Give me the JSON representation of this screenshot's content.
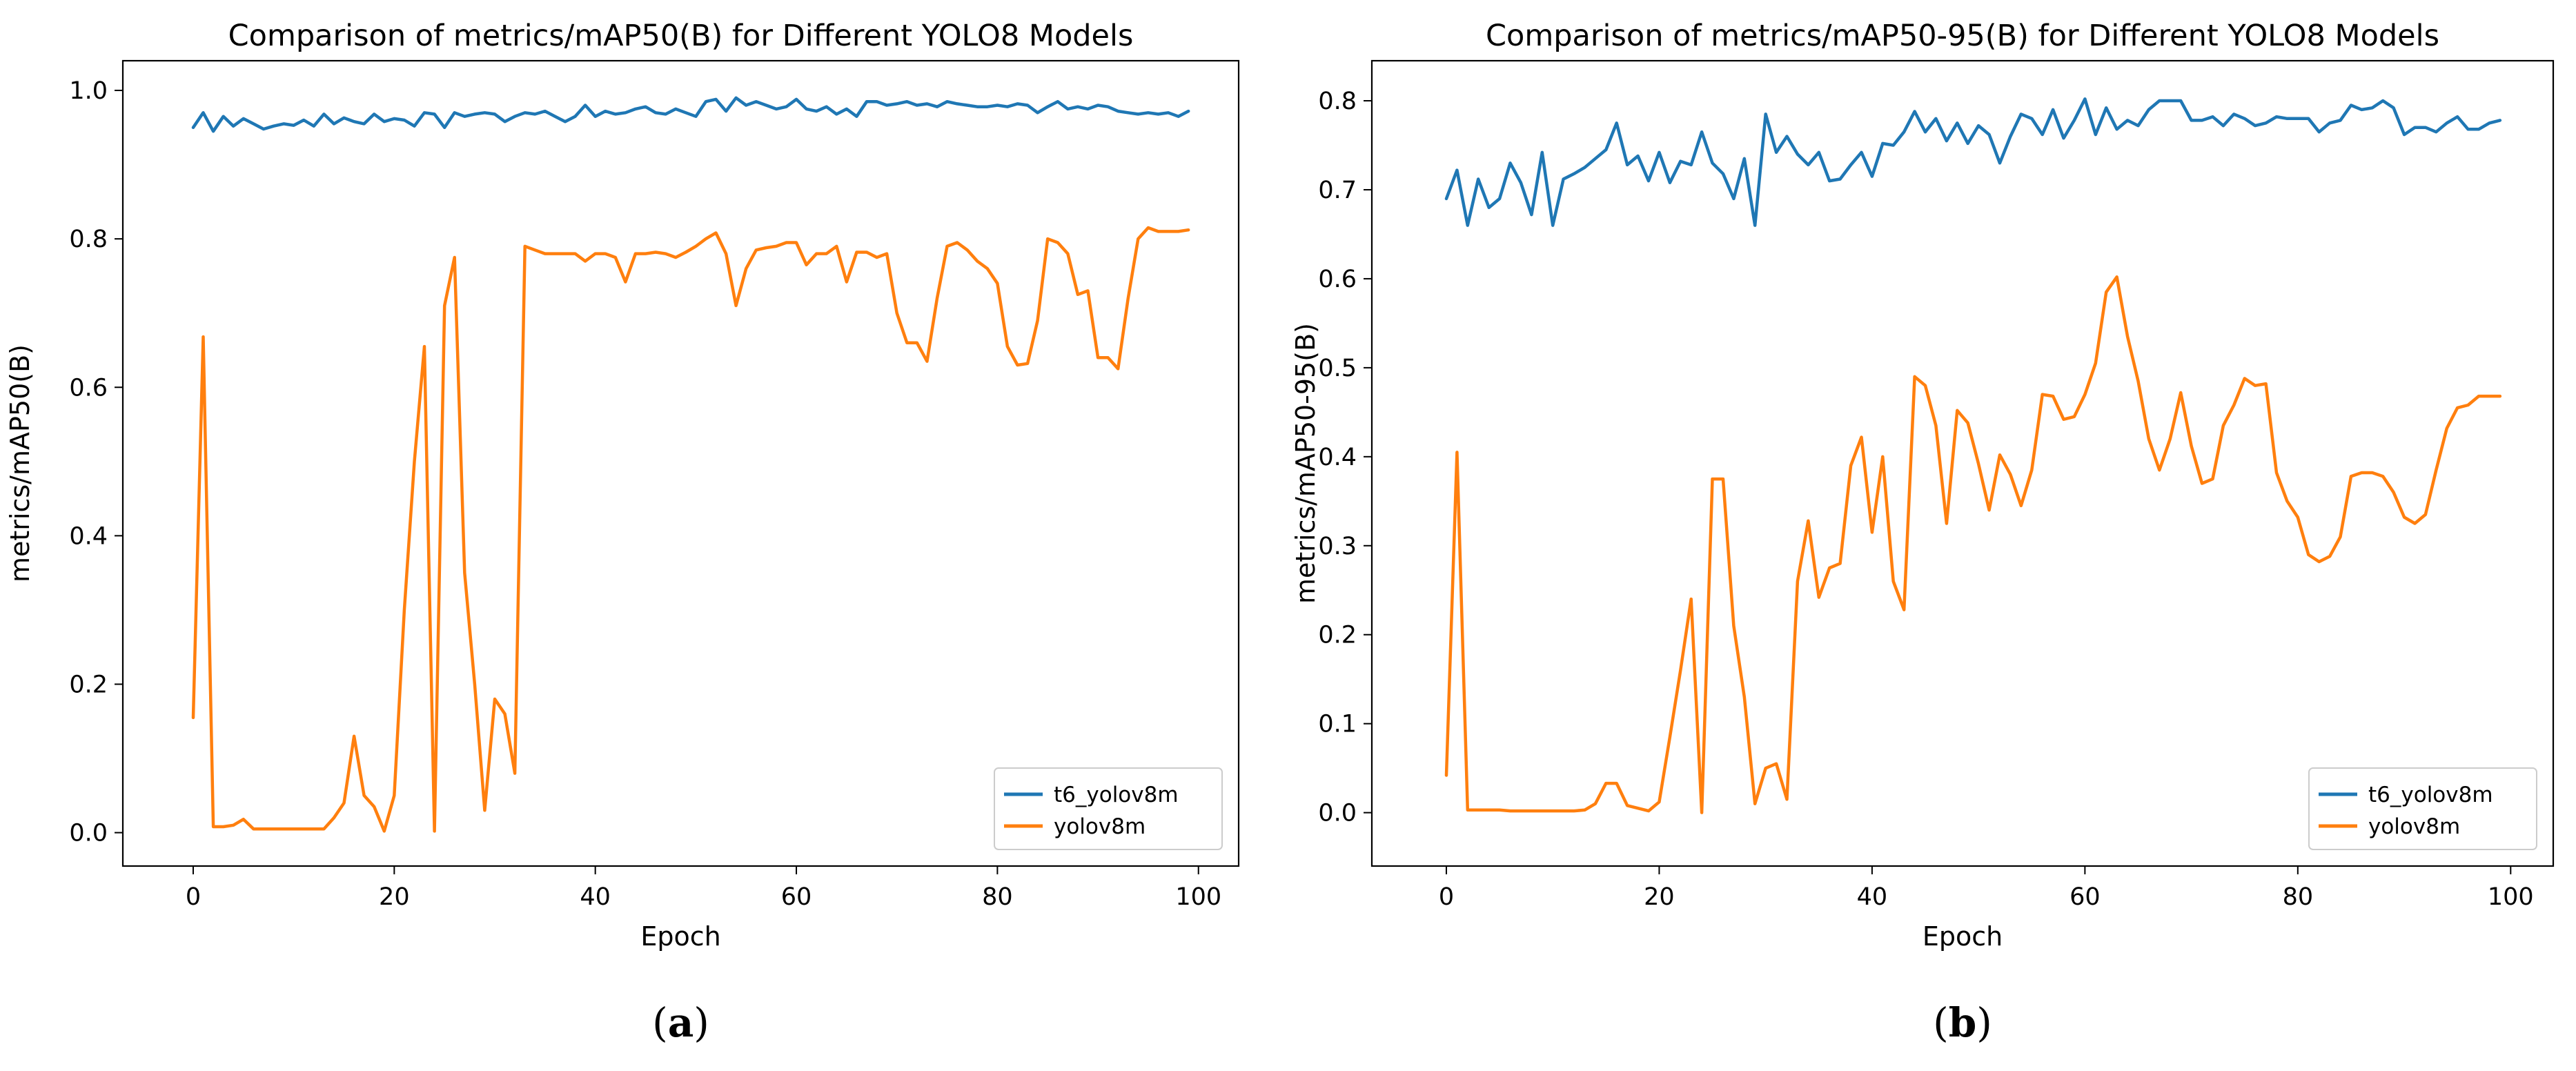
{
  "chart_data": [
    {
      "type": "line",
      "title": "Comparison of metrics/mAP50(B) for Different YOLO8 Models",
      "xlabel": "Epoch",
      "ylabel": "metrics/mAP50(B)",
      "xlim": [
        -7,
        104
      ],
      "ylim": [
        -0.045,
        1.04
      ],
      "xticks": [
        0,
        20,
        40,
        60,
        80,
        100
      ],
      "yticks": [
        0.0,
        0.2,
        0.4,
        0.6,
        0.8,
        1.0
      ],
      "legend_position": "lower-right",
      "caption_letter": "a",
      "series": [
        {
          "name": "t6_yolov8m",
          "color": "#1f77b4",
          "x": [
            0,
            1,
            2,
            3,
            4,
            5,
            6,
            7,
            8,
            9,
            10,
            11,
            12,
            13,
            14,
            15,
            16,
            17,
            18,
            19,
            20,
            21,
            22,
            23,
            24,
            25,
            26,
            27,
            28,
            29,
            30,
            31,
            32,
            33,
            34,
            35,
            36,
            37,
            38,
            39,
            40,
            41,
            42,
            43,
            44,
            45,
            46,
            47,
            48,
            49,
            50,
            51,
            52,
            53,
            54,
            55,
            56,
            57,
            58,
            59,
            60,
            61,
            62,
            63,
            64,
            65,
            66,
            67,
            68,
            69,
            70,
            71,
            72,
            73,
            74,
            75,
            76,
            77,
            78,
            79,
            80,
            81,
            82,
            83,
            84,
            85,
            86,
            87,
            88,
            89,
            90,
            91,
            92,
            93,
            94,
            95,
            96,
            97,
            98,
            99
          ],
          "values": [
            0.95,
            0.97,
            0.945,
            0.965,
            0.952,
            0.962,
            0.955,
            0.948,
            0.952,
            0.955,
            0.953,
            0.96,
            0.952,
            0.968,
            0.955,
            0.963,
            0.958,
            0.955,
            0.968,
            0.958,
            0.962,
            0.96,
            0.952,
            0.97,
            0.968,
            0.95,
            0.97,
            0.965,
            0.968,
            0.97,
            0.968,
            0.958,
            0.965,
            0.97,
            0.968,
            0.972,
            0.965,
            0.958,
            0.965,
            0.98,
            0.965,
            0.972,
            0.968,
            0.97,
            0.975,
            0.978,
            0.97,
            0.968,
            0.975,
            0.97,
            0.965,
            0.985,
            0.988,
            0.972,
            0.99,
            0.98,
            0.985,
            0.98,
            0.975,
            0.978,
            0.988,
            0.975,
            0.972,
            0.978,
            0.968,
            0.975,
            0.965,
            0.985,
            0.985,
            0.98,
            0.982,
            0.985,
            0.98,
            0.982,
            0.978,
            0.985,
            0.982,
            0.98,
            0.978,
            0.978,
            0.98,
            0.978,
            0.982,
            0.98,
            0.97,
            0.978,
            0.985,
            0.975,
            0.978,
            0.975,
            0.98,
            0.978,
            0.972,
            0.97,
            0.968,
            0.97,
            0.968,
            0.97,
            0.965,
            0.972
          ]
        },
        {
          "name": "yolov8m",
          "color": "#ff7f0e",
          "x": [
            0,
            1,
            2,
            3,
            4,
            5,
            6,
            7,
            8,
            9,
            10,
            11,
            12,
            13,
            14,
            15,
            16,
            17,
            18,
            19,
            20,
            21,
            22,
            23,
            24,
            25,
            26,
            27,
            28,
            29,
            30,
            31,
            32,
            33,
            34,
            35,
            36,
            37,
            38,
            39,
            40,
            41,
            42,
            43,
            44,
            45,
            46,
            47,
            48,
            49,
            50,
            51,
            52,
            53,
            54,
            55,
            56,
            57,
            58,
            59,
            60,
            61,
            62,
            63,
            64,
            65,
            66,
            67,
            68,
            69,
            70,
            71,
            72,
            73,
            74,
            75,
            76,
            77,
            78,
            79,
            80,
            81,
            82,
            83,
            84,
            85,
            86,
            87,
            88,
            89,
            90,
            91,
            92,
            93,
            94,
            95,
            96,
            97,
            98,
            99
          ],
          "values": [
            0.155,
            0.668,
            0.008,
            0.008,
            0.01,
            0.018,
            0.005,
            0.005,
            0.005,
            0.005,
            0.005,
            0.005,
            0.005,
            0.005,
            0.02,
            0.04,
            0.13,
            0.05,
            0.035,
            0.002,
            0.05,
            0.3,
            0.5,
            0.655,
            0.002,
            0.71,
            0.775,
            0.35,
            0.2,
            0.03,
            0.18,
            0.16,
            0.08,
            0.79,
            0.785,
            0.78,
            0.78,
            0.78,
            0.78,
            0.77,
            0.78,
            0.78,
            0.775,
            0.742,
            0.78,
            0.78,
            0.782,
            0.78,
            0.775,
            0.782,
            0.79,
            0.8,
            0.808,
            0.78,
            0.71,
            0.76,
            0.785,
            0.788,
            0.79,
            0.795,
            0.795,
            0.765,
            0.78,
            0.78,
            0.79,
            0.742,
            0.782,
            0.782,
            0.775,
            0.78,
            0.7,
            0.66,
            0.66,
            0.635,
            0.72,
            0.79,
            0.795,
            0.785,
            0.77,
            0.76,
            0.74,
            0.655,
            0.63,
            0.632,
            0.69,
            0.8,
            0.795,
            0.78,
            0.725,
            0.73,
            0.64,
            0.64,
            0.625,
            0.72,
            0.8,
            0.815,
            0.81,
            0.81,
            0.81,
            0.812
          ]
        }
      ]
    },
    {
      "type": "line",
      "title": "Comparison of metrics/mAP50-95(B) for Different YOLO8 Models",
      "xlabel": "Epoch",
      "ylabel": "metrics/mAP50-95(B)",
      "xlim": [
        -7,
        104
      ],
      "ylim": [
        -0.06,
        0.845
      ],
      "xticks": [
        0,
        20,
        40,
        60,
        80,
        100
      ],
      "yticks": [
        0.0,
        0.1,
        0.2,
        0.3,
        0.4,
        0.5,
        0.6,
        0.7,
        0.8
      ],
      "legend_position": "lower-right",
      "caption_letter": "b",
      "series": [
        {
          "name": "t6_yolov8m",
          "color": "#1f77b4",
          "x": [
            0,
            1,
            2,
            3,
            4,
            5,
            6,
            7,
            8,
            9,
            10,
            11,
            12,
            13,
            14,
            15,
            16,
            17,
            18,
            19,
            20,
            21,
            22,
            23,
            24,
            25,
            26,
            27,
            28,
            29,
            30,
            31,
            32,
            33,
            34,
            35,
            36,
            37,
            38,
            39,
            40,
            41,
            42,
            43,
            44,
            45,
            46,
            47,
            48,
            49,
            50,
            51,
            52,
            53,
            54,
            55,
            56,
            57,
            58,
            59,
            60,
            61,
            62,
            63,
            64,
            65,
            66,
            67,
            68,
            69,
            70,
            71,
            72,
            73,
            74,
            75,
            76,
            77,
            78,
            79,
            80,
            81,
            82,
            83,
            84,
            85,
            86,
            87,
            88,
            89,
            90,
            91,
            92,
            93,
            94,
            95,
            96,
            97,
            98,
            99
          ],
          "values": [
            0.69,
            0.722,
            0.66,
            0.712,
            0.68,
            0.69,
            0.73,
            0.708,
            0.672,
            0.742,
            0.66,
            0.712,
            0.718,
            0.725,
            0.735,
            0.745,
            0.775,
            0.728,
            0.738,
            0.71,
            0.742,
            0.708,
            0.732,
            0.728,
            0.765,
            0.73,
            0.718,
            0.69,
            0.735,
            0.66,
            0.785,
            0.742,
            0.76,
            0.74,
            0.728,
            0.742,
            0.71,
            0.712,
            0.728,
            0.742,
            0.715,
            0.752,
            0.75,
            0.765,
            0.788,
            0.765,
            0.78,
            0.755,
            0.775,
            0.752,
            0.772,
            0.762,
            0.73,
            0.76,
            0.785,
            0.78,
            0.762,
            0.79,
            0.758,
            0.778,
            0.802,
            0.762,
            0.792,
            0.768,
            0.778,
            0.772,
            0.79,
            0.8,
            0.8,
            0.8,
            0.778,
            0.778,
            0.782,
            0.772,
            0.785,
            0.78,
            0.772,
            0.775,
            0.782,
            0.78,
            0.78,
            0.78,
            0.765,
            0.775,
            0.778,
            0.795,
            0.79,
            0.792,
            0.8,
            0.792,
            0.762,
            0.77,
            0.77,
            0.765,
            0.775,
            0.782,
            0.768,
            0.768,
            0.775,
            0.778
          ]
        },
        {
          "name": "yolov8m",
          "color": "#ff7f0e",
          "x": [
            0,
            1,
            2,
            3,
            4,
            5,
            6,
            7,
            8,
            9,
            10,
            11,
            12,
            13,
            14,
            15,
            16,
            17,
            18,
            19,
            20,
            21,
            22,
            23,
            24,
            25,
            26,
            27,
            28,
            29,
            30,
            31,
            32,
            33,
            34,
            35,
            36,
            37,
            38,
            39,
            40,
            41,
            42,
            43,
            44,
            45,
            46,
            47,
            48,
            49,
            50,
            51,
            52,
            53,
            54,
            55,
            56,
            57,
            58,
            59,
            60,
            61,
            62,
            63,
            64,
            65,
            66,
            67,
            68,
            69,
            70,
            71,
            72,
            73,
            74,
            75,
            76,
            77,
            78,
            79,
            80,
            81,
            82,
            83,
            84,
            85,
            86,
            87,
            88,
            89,
            90,
            91,
            92,
            93,
            94,
            95,
            96,
            97,
            98,
            99
          ],
          "values": [
            0.042,
            0.405,
            0.003,
            0.003,
            0.003,
            0.003,
            0.002,
            0.002,
            0.002,
            0.002,
            0.002,
            0.002,
            0.002,
            0.003,
            0.01,
            0.033,
            0.033,
            0.008,
            0.005,
            0.002,
            0.012,
            0.085,
            0.16,
            0.24,
            0.0,
            0.375,
            0.375,
            0.21,
            0.13,
            0.01,
            0.05,
            0.055,
            0.015,
            0.26,
            0.328,
            0.242,
            0.275,
            0.28,
            0.39,
            0.422,
            0.315,
            0.4,
            0.26,
            0.228,
            0.49,
            0.48,
            0.435,
            0.325,
            0.452,
            0.438,
            0.392,
            0.34,
            0.402,
            0.38,
            0.345,
            0.385,
            0.47,
            0.468,
            0.442,
            0.445,
            0.47,
            0.505,
            0.585,
            0.602,
            0.535,
            0.485,
            0.42,
            0.385,
            0.42,
            0.472,
            0.412,
            0.37,
            0.375,
            0.435,
            0.458,
            0.488,
            0.48,
            0.482,
            0.382,
            0.35,
            0.332,
            0.29,
            0.282,
            0.288,
            0.31,
            0.378,
            0.382,
            0.382,
            0.378,
            0.36,
            0.332,
            0.325,
            0.335,
            0.385,
            0.432,
            0.455,
            0.458,
            0.468,
            0.468,
            0.468
          ]
        }
      ]
    }
  ]
}
